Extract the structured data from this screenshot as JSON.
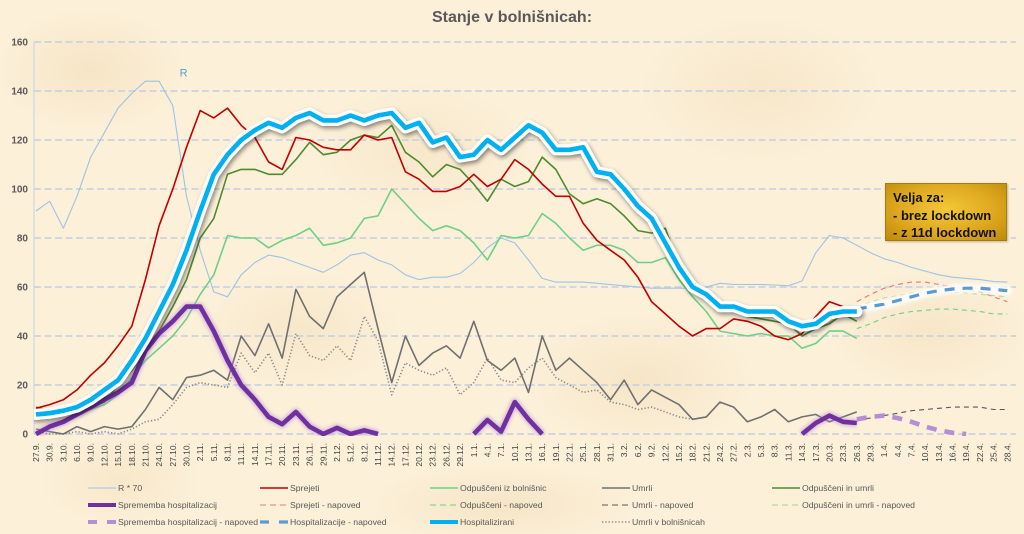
{
  "chart_data": {
    "type": "line",
    "title": "Stanje v bolnišnicah:",
    "xlabel": "",
    "ylabel": "",
    "ylim": [
      0,
      160
    ],
    "yticks": [
      0,
      20,
      40,
      60,
      80,
      100,
      120,
      140,
      160
    ],
    "grid": true,
    "x_origin": "27.9.",
    "x_unit": "days since 27.9.",
    "x_range": [
      0,
      213
    ],
    "xtick_step_days": 3,
    "xtick_labels": [
      "27.9.",
      "30.9.",
      "3.10.",
      "6.10.",
      "9.10.",
      "12.10.",
      "15.10.",
      "18.10.",
      "21.10.",
      "24.10.",
      "27.10.",
      "30.10.",
      "2.11.",
      "5.11.",
      "8.11.",
      "11.11.",
      "14.11.",
      "17.11.",
      "20.11.",
      "23.11.",
      "26.11.",
      "29.11.",
      "2.12.",
      "5.12.",
      "8.12.",
      "11.12.",
      "14.12.",
      "17.12.",
      "20.12.",
      "23.12.",
      "26.12.",
      "29.12.",
      "1.1.",
      "4.1.",
      "7.1.",
      "10.1.",
      "13.1.",
      "16.1.",
      "19.1.",
      "22.1.",
      "25.1.",
      "28.1.",
      "31.1.",
      "3.2.",
      "6.2.",
      "9.2.",
      "12.2.",
      "15.2.",
      "18.2.",
      "21.2.",
      "24.2.",
      "27.2.",
      "2.3.",
      "5.3.",
      "8.3.",
      "11.3.",
      "14.3.",
      "17.3.",
      "20.3.",
      "23.3.",
      "26.3.",
      "29.3.",
      "1.4.",
      "4.4.",
      "7.4.",
      "10.4.",
      "13.4.",
      "16.4.",
      "19.4.",
      "22.4.",
      "25.4.",
      "28.4."
    ],
    "legend_position": "bottom",
    "series": [
      {
        "id": "r70",
        "name": "R * 70",
        "color": "#9dc3e6",
        "style": "solid",
        "weight": "thin",
        "start": 0,
        "step": 3,
        "values": [
          91,
          95,
          84,
          97,
          113,
          123,
          133,
          139,
          144,
          144,
          134,
          97,
          75,
          58,
          56,
          65,
          70,
          73,
          72,
          70,
          68,
          66,
          69,
          73,
          74,
          71,
          69,
          65,
          63,
          64,
          64,
          65.5,
          70,
          76,
          80,
          78,
          71,
          63.5,
          62,
          62,
          62,
          61.5,
          61,
          60.5,
          60,
          59.5,
          59.5,
          59.5,
          59.5,
          60,
          61.5,
          61,
          61,
          61,
          60.8,
          60.5,
          62.5,
          74,
          81,
          80,
          77,
          74,
          71.5,
          70,
          68,
          66.5,
          65,
          64,
          63.5,
          63,
          62.2,
          62
        ]
      },
      {
        "id": "sprejeti",
        "name": "Sprejeti",
        "color": "#c00000",
        "style": "solid",
        "weight": "medium",
        "start": 0,
        "step": 3,
        "values": [
          10.5,
          12,
          14,
          18,
          24,
          29,
          36,
          44,
          63,
          85,
          100,
          117,
          132,
          129,
          133,
          126,
          121,
          111,
          108,
          121,
          120,
          117,
          116,
          116,
          122,
          120,
          121,
          107,
          104,
          99,
          99,
          101,
          106,
          101,
          104,
          112,
          108,
          102,
          97,
          97,
          86,
          79,
          75,
          71,
          64,
          54,
          49,
          44,
          40,
          43,
          43,
          47,
          46,
          44,
          40,
          38.5,
          41,
          48,
          54,
          52,
          51
        ]
      },
      {
        "id": "odpusceni",
        "name": "Odpuščeni iz bolnišnic",
        "color": "#6fcf86",
        "style": "solid",
        "weight": "medium",
        "start": 0,
        "step": 3,
        "values": [
          10,
          9,
          8.5,
          9,
          10,
          12,
          16,
          23,
          30,
          35,
          40,
          47,
          57,
          65,
          81,
          80,
          80,
          76,
          79,
          81,
          84,
          77,
          78,
          80,
          88,
          89,
          100,
          94,
          88,
          83,
          85,
          83,
          78,
          71,
          81,
          80,
          81,
          90,
          86,
          80,
          75,
          77,
          77,
          75,
          70,
          70,
          72,
          63,
          56,
          50,
          42,
          41,
          40,
          41,
          40,
          40,
          35,
          37,
          42,
          42,
          39
        ]
      },
      {
        "id": "umrli",
        "name": "Umrli",
        "color": "#707070",
        "style": "solid",
        "weight": "medium",
        "start": 0,
        "step": 3,
        "values": [
          2,
          1,
          0,
          3,
          1,
          3,
          2,
          3,
          10,
          19,
          14,
          23,
          24,
          26,
          22,
          40,
          32,
          45,
          31,
          59,
          48,
          43,
          56,
          61,
          66,
          43,
          21,
          40,
          28,
          33,
          36,
          31,
          46,
          30,
          26,
          31,
          17,
          40,
          26,
          31,
          26,
          21,
          14,
          22,
          12,
          18,
          15,
          12,
          6,
          7,
          13,
          11,
          5,
          7,
          10,
          5,
          7,
          8,
          5,
          7,
          9
        ]
      },
      {
        "id": "odp_umrli",
        "name": "Odpuščeni in umrli",
        "color": "#4f8a2f",
        "style": "solid",
        "weight": "medium",
        "start": 0,
        "step": 3,
        "values": [
          11,
          9.5,
          9,
          9,
          11,
          13,
          20,
          26,
          33,
          42,
          52,
          63,
          80,
          88,
          106,
          108,
          108,
          106,
          106,
          112,
          119,
          114,
          115,
          120,
          122,
          121,
          126,
          115,
          111,
          105,
          110,
          108,
          102,
          95,
          104,
          101,
          103,
          113,
          108,
          98,
          94,
          96,
          94,
          89,
          83,
          82,
          84,
          68,
          60,
          55,
          52,
          51,
          48,
          47,
          46,
          45,
          40,
          43,
          45,
          49,
          46
        ]
      },
      {
        "id": "sprememba",
        "name": "Sprememba hospitalizacij",
        "color": "#7030a0",
        "style": "solid",
        "weight": "thick",
        "start": 0,
        "step": 3,
        "values": [
          0,
          3,
          5,
          8,
          11,
          14,
          17,
          21,
          34,
          41,
          46,
          52,
          52,
          42,
          30,
          20,
          14,
          7,
          4,
          9,
          3,
          0,
          2.5,
          0,
          1.5,
          0,
          null,
          null,
          null,
          null,
          null,
          null,
          0,
          5.7,
          1,
          13,
          6,
          0,
          null,
          null,
          null,
          null,
          null,
          null,
          null,
          null,
          null,
          null,
          null,
          null,
          null,
          null,
          null,
          null,
          null,
          null,
          0,
          4.5,
          7.5,
          5,
          4.5
        ]
      },
      {
        "id": "sprejeti_np",
        "name": "Sprejeti - napoved",
        "color": "#e8776f",
        "style": "dashed",
        "weight": "thin",
        "start": 180,
        "step": 3,
        "values": [
          54,
          57,
          59.5,
          61,
          62,
          62,
          61,
          60,
          59,
          58,
          56,
          54
        ]
      },
      {
        "id": "odpusceni_np",
        "name": "Odpuščeni - napoved",
        "color": "#6fcf86",
        "style": "dashed",
        "weight": "thin",
        "start": 180,
        "step": 3,
        "values": [
          43,
          45,
          47.5,
          49,
          50,
          50.5,
          51,
          51,
          50.5,
          50,
          49,
          49
        ]
      },
      {
        "id": "umrli_np",
        "name": "Umrli - napoved",
        "color": "#595959",
        "style": "dashed",
        "weight": "thin",
        "start": 180,
        "step": 3,
        "values": [
          6,
          6.5,
          7.5,
          8.5,
          9.5,
          10,
          10.5,
          11,
          11,
          11,
          10,
          10
        ]
      },
      {
        "id": "odp_umrli_np",
        "name": "Odpuščeni in umrli - napoved",
        "color": "#a9d18e",
        "style": "dashed",
        "weight": "thin",
        "start": 180,
        "step": 3,
        "values": [
          52,
          54,
          55.5,
          56.5,
          57.5,
          58,
          58,
          58,
          57.5,
          57,
          56.5,
          56
        ]
      },
      {
        "id": "sprememba_np",
        "name": "Sprememba hospitalizacij - napoved",
        "color": "#b48fd6",
        "style": "dashed",
        "weight": "thick",
        "start": 180,
        "step": 3,
        "values": [
          6,
          7,
          7.5,
          6.5,
          5,
          3,
          1.5,
          0.5,
          0
        ]
      },
      {
        "id": "hosp_np",
        "name": "Hospitalizacije - napoved",
        "color": "#5b9bd5",
        "style": "dashed",
        "weight": "heavy",
        "start": 180,
        "step": 3,
        "values": [
          51,
          52,
          53,
          54.5,
          56,
          57.5,
          58.5,
          59.2,
          59.5,
          59.5,
          59,
          58.5
        ]
      },
      {
        "id": "hosp",
        "name": "Hospitalizirani",
        "color": "#00b0f0",
        "style": "solid",
        "weight": "thick",
        "start": 0,
        "step": 3,
        "values": [
          8,
          8.5,
          9.5,
          11,
          14,
          18,
          22,
          30,
          39,
          50,
          61,
          75,
          91,
          106,
          114,
          120,
          124,
          127,
          125,
          129,
          131,
          128,
          128,
          130,
          128,
          130,
          131,
          125,
          127,
          119,
          121,
          113,
          114,
          120,
          116,
          121,
          126,
          123,
          116,
          116,
          117,
          107,
          106,
          100,
          93,
          88,
          78,
          68,
          60,
          57,
          52,
          52,
          50,
          50,
          50,
          46,
          44,
          45,
          49,
          50,
          50
        ]
      },
      {
        "id": "umrli_vb",
        "name": "Umrli v bolnišnicah",
        "color": "#8c8c8c",
        "style": "dotted",
        "weight": "medium",
        "start": 0,
        "step": 3,
        "values": [
          1,
          0,
          0,
          1,
          0,
          1,
          0,
          2,
          5,
          6,
          12,
          19,
          21,
          20,
          19,
          33,
          25,
          33,
          20,
          41,
          32,
          30,
          36,
          30,
          48,
          38,
          16,
          29,
          26,
          24,
          27,
          16,
          21,
          31,
          22,
          21,
          27,
          31,
          23,
          20,
          17,
          18,
          13,
          12,
          10,
          11,
          9,
          7,
          6
        ]
      }
    ],
    "annotations": [
      {
        "text": "R",
        "series": "r70",
        "x": 31.5,
        "y": 146
      }
    ],
    "note_box": {
      "lines": [
        "Velja za:",
        "- brez lockdown",
        "- z 11d lockdown"
      ]
    }
  }
}
